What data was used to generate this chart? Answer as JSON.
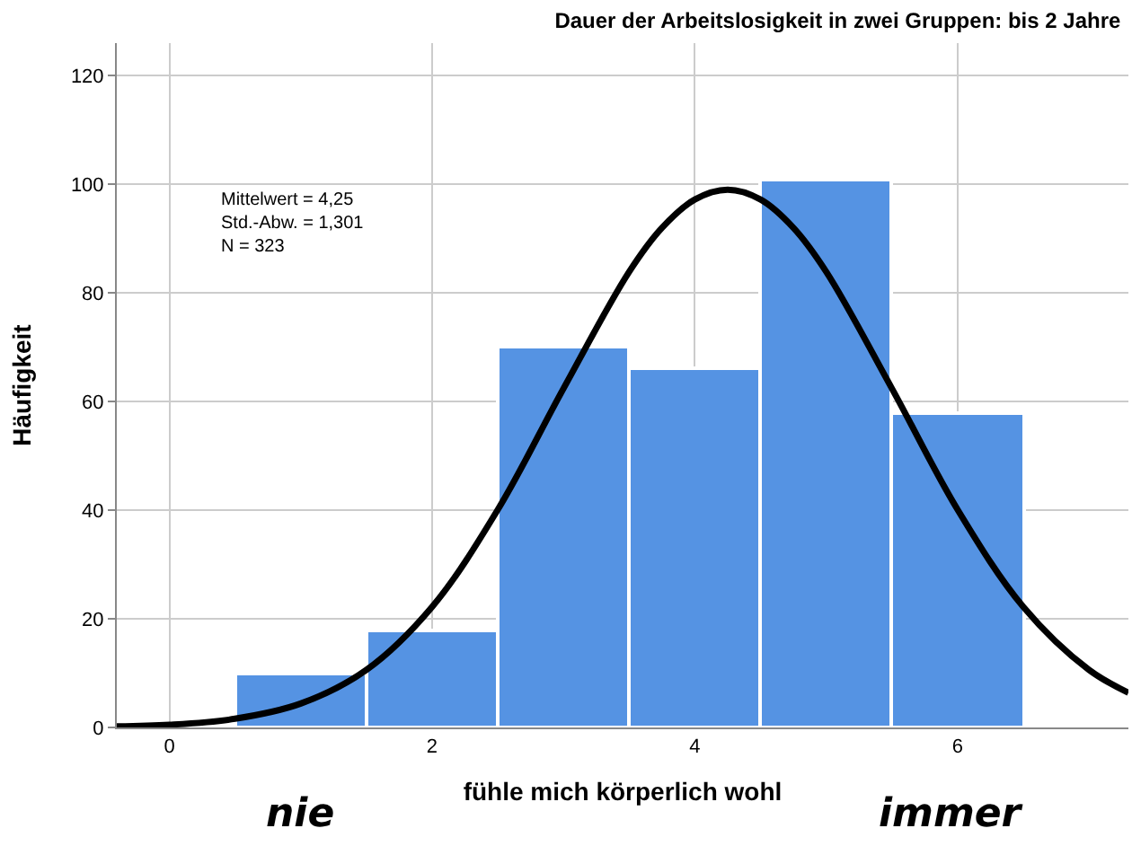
{
  "chart_data": {
    "type": "histogram",
    "title": "Dauer der Arbeitslosigkeit in zwei Gruppen: bis 2 Jahre",
    "xlabel": "fühle mich körperlich wohl",
    "ylabel": "Häufigkeit",
    "bins": [
      0.5,
      1.5,
      2.5,
      3.5,
      4.5,
      5.5,
      6.5
    ],
    "values": [
      10,
      18,
      70,
      66,
      101,
      58
    ],
    "color": "#5593e3",
    "series": [
      {
        "type": "line",
        "color": "#000000",
        "x": [
          -0.4,
          0,
          0.5,
          1,
          1.5,
          2,
          2.5,
          3,
          3.5,
          3.75,
          4,
          4.25,
          4.5,
          4.75,
          5,
          5.5,
          6,
          6.5,
          7,
          7.3
        ],
        "values": [
          0.2,
          0.5,
          1.6,
          4.4,
          10.6,
          22.2,
          40.1,
          62.4,
          83.9,
          92.0,
          97.2,
          99.0,
          97.2,
          92.0,
          83.9,
          62.4,
          40.1,
          22.2,
          10.6,
          6.4
        ]
      }
    ],
    "annotations": [
      "Mittelwert = 4,25\nStd.-Abw. = 1,301\nN = 323",
      "nie",
      "immer"
    ],
    "xlim": [
      -0.4,
      7.3
    ],
    "ylim": [
      0,
      126
    ],
    "xticks": [
      0,
      2,
      4,
      6
    ],
    "yticks": [
      0,
      20,
      40,
      60,
      80,
      100,
      120
    ],
    "grid": true,
    "marker": "none",
    "line_style": "solid"
  }
}
